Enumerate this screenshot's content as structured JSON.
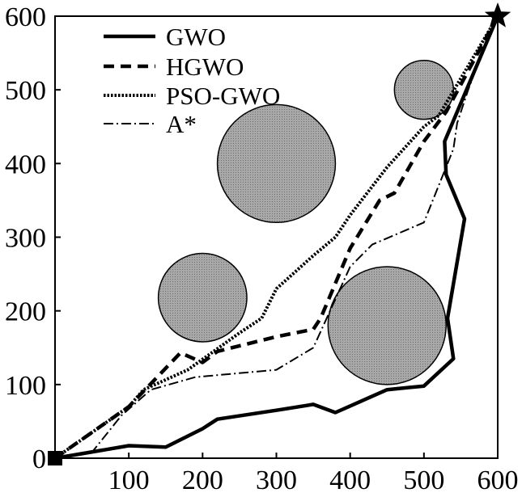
{
  "chart_data": {
    "type": "line",
    "title": "",
    "xlabel": "",
    "ylabel": "",
    "xlim": [
      0,
      600
    ],
    "ylim": [
      0,
      600
    ],
    "x_ticks": [
      100,
      200,
      300,
      400,
      500,
      600
    ],
    "y_ticks": [
      0,
      100,
      200,
      300,
      400,
      500,
      600
    ],
    "grid": false,
    "legend_position": "top-left",
    "start": {
      "x": 0,
      "y": 0,
      "marker": "square"
    },
    "goal": {
      "x": 600,
      "y": 600,
      "marker": "star"
    },
    "obstacles": [
      {
        "cx": 300,
        "cy": 400,
        "r": 80
      },
      {
        "cx": 500,
        "cy": 500,
        "r": 40
      },
      {
        "cx": 200,
        "cy": 218,
        "r": 60
      },
      {
        "cx": 450,
        "cy": 180,
        "r": 80
      }
    ],
    "obstacle_color": "#a8a8a8",
    "series": [
      {
        "name": "GWO",
        "style": "solid",
        "width": 4.5,
        "color": "#000000",
        "points": [
          [
            0,
            0
          ],
          [
            100,
            17
          ],
          [
            150,
            15
          ],
          [
            200,
            40
          ],
          [
            220,
            53
          ],
          [
            300,
            65
          ],
          [
            350,
            73
          ],
          [
            380,
            62
          ],
          [
            450,
            93
          ],
          [
            500,
            98
          ],
          [
            540,
            135
          ],
          [
            532,
            190
          ],
          [
            555,
            325
          ],
          [
            530,
            385
          ],
          [
            528,
            430
          ],
          [
            600,
            600
          ]
        ]
      },
      {
        "name": "HGWO",
        "style": "dashed",
        "width": 4.5,
        "color": "#000000",
        "points": [
          [
            0,
            0
          ],
          [
            100,
            70
          ],
          [
            170,
            143
          ],
          [
            200,
            130
          ],
          [
            220,
            145
          ],
          [
            300,
            165
          ],
          [
            350,
            175
          ],
          [
            360,
            190
          ],
          [
            400,
            285
          ],
          [
            440,
            350
          ],
          [
            460,
            360
          ],
          [
            500,
            430
          ],
          [
            530,
            470
          ],
          [
            600,
            600
          ]
        ]
      },
      {
        "name": "PSO-GWO",
        "style": "dotted",
        "width": 4,
        "color": "#000000",
        "points": [
          [
            0,
            0
          ],
          [
            100,
            70
          ],
          [
            120,
            93
          ],
          [
            180,
            120
          ],
          [
            250,
            170
          ],
          [
            280,
            190
          ],
          [
            300,
            230
          ],
          [
            350,
            275
          ],
          [
            380,
            300
          ],
          [
            400,
            330
          ],
          [
            450,
            395
          ],
          [
            500,
            450
          ],
          [
            520,
            465
          ],
          [
            600,
            600
          ]
        ]
      },
      {
        "name": "A*",
        "style": "dashdot",
        "width": 2,
        "color": "#000000",
        "points": [
          [
            0,
            0
          ],
          [
            50,
            8
          ],
          [
            90,
            58
          ],
          [
            130,
            93
          ],
          [
            190,
            110
          ],
          [
            300,
            120
          ],
          [
            350,
            150
          ],
          [
            400,
            260
          ],
          [
            430,
            290
          ],
          [
            500,
            320
          ],
          [
            540,
            420
          ],
          [
            545,
            455
          ],
          [
            560,
            500
          ],
          [
            575,
            540
          ],
          [
            600,
            600
          ]
        ]
      }
    ]
  }
}
